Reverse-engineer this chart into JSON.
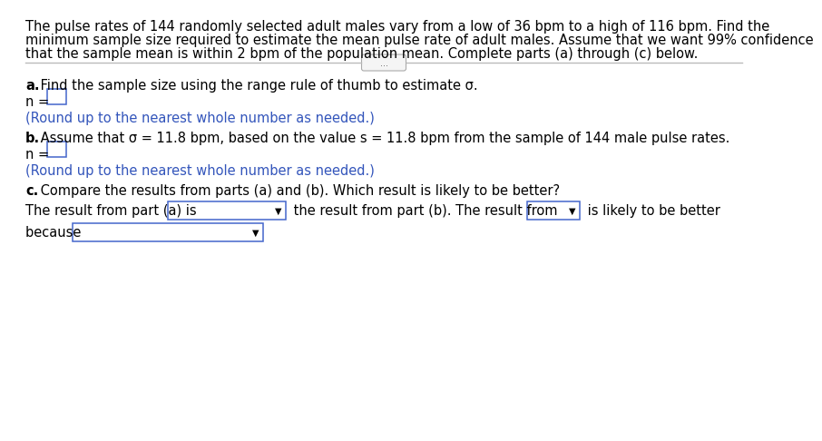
{
  "background_color": "#ffffff",
  "header_line1": "The pulse rates of 144 randomly selected adult males vary from a low of 36 bpm to a high of 116 bpm. Find the",
  "header_line2": "minimum sample size required to estimate the mean pulse rate of adult males. Assume that we want 99% confidence",
  "header_line3": "that the sample mean is within 2 bpm of the population mean. Complete parts (a) through (c) below.",
  "divider_button_text": "...",
  "part_a_label": "a.",
  "part_a_text": " Find the sample size using the range rule of thumb to estimate σ.",
  "part_a_n_prefix": "n = ",
  "part_a_round": "(Round up to the nearest whole number as needed.)",
  "part_b_label": "b.",
  "part_b_text": " Assume that σ = 11.8 bpm, based on the value s = 11.8 bpm from the sample of 144 male pulse rates.",
  "part_b_n_prefix": "n = ",
  "part_b_round": "(Round up to the nearest whole number as needed.)",
  "part_c_label": "c.",
  "part_c_text": " Compare the results from parts (a) and (b). Which result is likely to be better?",
  "part_c_line1_pre": "The result from part (a) is ",
  "part_c_line1_mid": " the result from part (b). The result from ",
  "part_c_line1_post": " is likely to be better",
  "part_c_line2_pre": "because ",
  "text_color": "#000000",
  "hint_color": "#3355bb",
  "box_edge_color": "#4466cc",
  "font_size": 10.5
}
